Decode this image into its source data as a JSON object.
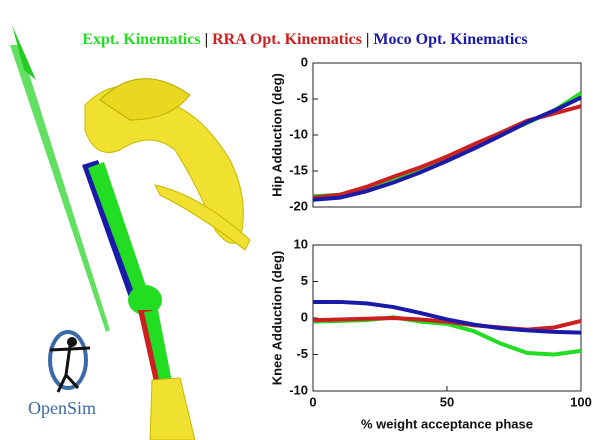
{
  "legend_separator": "|",
  "logo": "OpenSim",
  "chart_data": [
    {
      "type": "line",
      "ylabel": "Hip Adduction (deg)",
      "x": [
        0,
        10,
        20,
        30,
        40,
        50,
        60,
        70,
        80,
        90,
        100
      ],
      "xlim": [
        0,
        100
      ],
      "ylim": [
        -20,
        0
      ],
      "yticks": [
        -20,
        -15,
        -10,
        -5,
        0
      ],
      "series": [
        {
          "name": "Expt. Kinematics",
          "color": "#22dd22",
          "values": [
            -18.5,
            -18.3,
            -17.5,
            -16.0,
            -14.8,
            -13.2,
            -11.6,
            -10.0,
            -8.3,
            -6.6,
            -4.2
          ]
        },
        {
          "name": "RRA Opt. Kinematics",
          "color": "#cc2020",
          "values": [
            -18.7,
            -18.3,
            -17.2,
            -15.8,
            -14.5,
            -13.0,
            -11.3,
            -9.7,
            -8.0,
            -7.0,
            -6.0
          ]
        },
        {
          "name": "Moco Opt. Kinematics",
          "color": "#1a1aa8",
          "values": [
            -19.0,
            -18.7,
            -17.8,
            -16.6,
            -15.2,
            -13.6,
            -11.9,
            -10.1,
            -8.2,
            -6.6,
            -4.8
          ]
        }
      ]
    },
    {
      "type": "line",
      "ylabel": "Knee Adduction (deg)",
      "xlabel": "% weight acceptance phase",
      "x": [
        0,
        10,
        20,
        30,
        40,
        50,
        60,
        70,
        80,
        90,
        100
      ],
      "xlim": [
        0,
        100
      ],
      "xticks": [
        0,
        50,
        100
      ],
      "ylim": [
        -10,
        10
      ],
      "yticks": [
        -10,
        -5,
        0,
        5,
        10
      ],
      "series": [
        {
          "name": "Expt. Kinematics",
          "color": "#22dd22",
          "values": [
            -0.5,
            -0.4,
            -0.3,
            0.1,
            -0.5,
            -0.8,
            -1.8,
            -3.5,
            -4.8,
            -5.0,
            -4.5
          ]
        },
        {
          "name": "RRA Opt. Kinematics",
          "color": "#cc2020",
          "values": [
            -0.3,
            -0.2,
            -0.1,
            0.0,
            -0.2,
            -0.5,
            -1.0,
            -1.3,
            -1.6,
            -1.3,
            -0.4
          ]
        },
        {
          "name": "Moco Opt. Kinematics",
          "color": "#1a1aa8",
          "values": [
            2.2,
            2.2,
            2.0,
            1.5,
            0.7,
            -0.2,
            -0.9,
            -1.4,
            -1.7,
            -1.9,
            -2.0
          ]
        }
      ]
    }
  ]
}
